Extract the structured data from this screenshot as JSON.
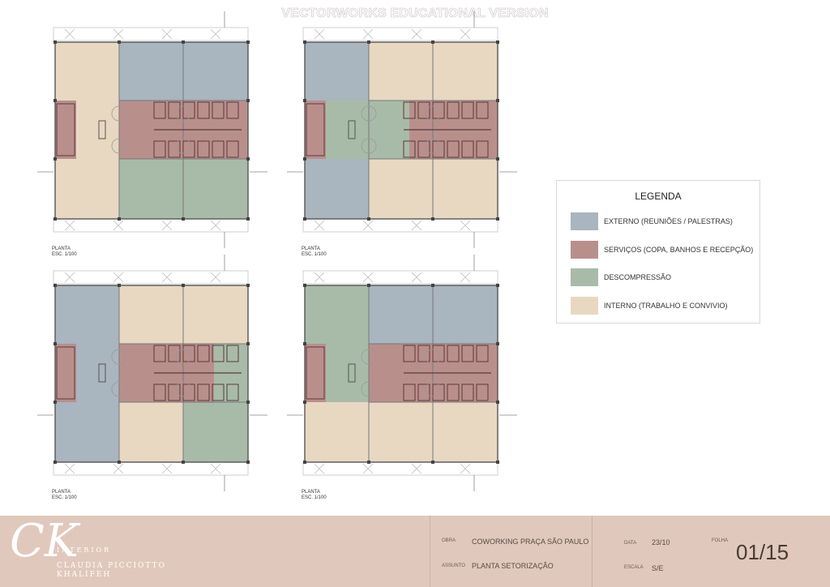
{
  "watermark": "VECTORWORKS EDUCATIONAL VERSION",
  "colors": {
    "externo": "#a9b5bf",
    "servicos": "#b98f8c",
    "descompressao": "#a8bba8",
    "interno": "#e8d8c2",
    "footer_bg": "#e1c8bc"
  },
  "plans": [
    {
      "label": "PLANTA",
      "scale": "ESC. 1/100",
      "zones": {
        "a": "interno",
        "b": "externo",
        "c": "externo",
        "d": "interno",
        "e": "descompressao",
        "f": "descompressao",
        "lb": "servicos",
        "svc": "servicos"
      }
    },
    {
      "label": "PLANTA",
      "scale": "ESC. 1/100",
      "zones": {
        "a": "externo",
        "b": "interno",
        "c": "interno",
        "d": "externo",
        "e": "interno",
        "f": "interno",
        "lb": "servicos",
        "mid": "descompressao",
        "svc": "servicos"
      }
    },
    {
      "label": "PLANTA",
      "scale": "ESC. 1/100",
      "zones": {
        "a": "externo",
        "b": "interno",
        "c": "interno",
        "d": "externo",
        "e": "interno",
        "f": "descompressao",
        "lb": "servicos",
        "svc": "servicos",
        "right": "descompressao"
      }
    },
    {
      "label": "PLANTA",
      "scale": "ESC. 1/100",
      "zones": {
        "a": "descompressao",
        "b": "externo",
        "c": "externo",
        "d": "interno",
        "e": "interno",
        "f": "interno",
        "lb": "servicos",
        "svc": "servicos"
      }
    }
  ],
  "legend": {
    "title": "LEGENDA",
    "items": [
      {
        "key": "externo",
        "label": "EXTERNO (REUNIÕES / PALESTRAS)"
      },
      {
        "key": "servicos",
        "label": "SERVIÇOS (COPA, BANHOS E RECEPÇÃO)"
      },
      {
        "key": "descompressao",
        "label": "DESCOMPRESSÃO"
      },
      {
        "key": "interno",
        "label": "INTERNO (TRABALHO E CONVIVIO)"
      }
    ]
  },
  "footer": {
    "brand_top": "INTERIOR",
    "brand_name_1": "CLAUDIA PICCIOTTO",
    "brand_name_2": "KHALIFEH",
    "obra_label": "OBRA",
    "obra": "COWORKING PRAÇA SÃO PAULO",
    "assunto_label": "ASSUNTO",
    "assunto": "PLANTA SETORIZAÇÃO",
    "data_label": "DATA",
    "data": "23/10",
    "escala_label": "ESCALA",
    "escala": "S/E",
    "folha_label": "FOLHA",
    "folha": "01/15"
  }
}
